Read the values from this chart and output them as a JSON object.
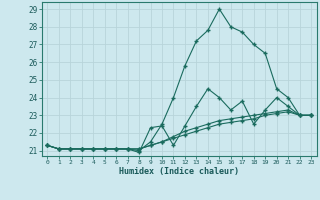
{
  "xlabel": "Humidex (Indice chaleur)",
  "background_color": "#cde8ee",
  "grid_color": "#b8d4da",
  "line_color": "#1a6b5e",
  "xlim": [
    -0.5,
    23.5
  ],
  "ylim": [
    20.7,
    29.4
  ],
  "yticks": [
    21,
    22,
    23,
    24,
    25,
    26,
    27,
    28,
    29
  ],
  "xtick_labels": [
    "0",
    "1",
    "2",
    "3",
    "4",
    "5",
    "6",
    "7",
    "8",
    "9",
    "10",
    "11",
    "12",
    "13",
    "14",
    "15",
    "16",
    "17",
    "18",
    "19",
    "20",
    "21",
    "22",
    "23"
  ],
  "series": [
    [
      21.3,
      21.1,
      21.1,
      21.1,
      21.1,
      21.1,
      21.1,
      21.1,
      21.0,
      21.5,
      22.5,
      24.0,
      25.8,
      27.2,
      27.8,
      29.0,
      28.0,
      27.7,
      27.0,
      26.5,
      24.5,
      24.0,
      23.0,
      23.0
    ],
    [
      21.3,
      21.1,
      21.1,
      21.1,
      21.1,
      21.1,
      21.1,
      21.1,
      20.9,
      22.3,
      22.4,
      21.3,
      22.4,
      23.5,
      24.5,
      24.0,
      23.3,
      23.8,
      22.5,
      23.3,
      24.0,
      23.5,
      23.0,
      23.0
    ],
    [
      21.3,
      21.1,
      21.1,
      21.1,
      21.1,
      21.1,
      21.1,
      21.1,
      21.1,
      21.3,
      21.5,
      21.7,
      21.9,
      22.1,
      22.3,
      22.5,
      22.6,
      22.7,
      22.8,
      23.0,
      23.1,
      23.2,
      23.0,
      23.0
    ],
    [
      21.3,
      21.1,
      21.1,
      21.1,
      21.1,
      21.1,
      21.1,
      21.1,
      21.1,
      21.3,
      21.5,
      21.8,
      22.1,
      22.3,
      22.5,
      22.7,
      22.8,
      22.9,
      23.0,
      23.1,
      23.2,
      23.3,
      23.0,
      23.0
    ]
  ]
}
